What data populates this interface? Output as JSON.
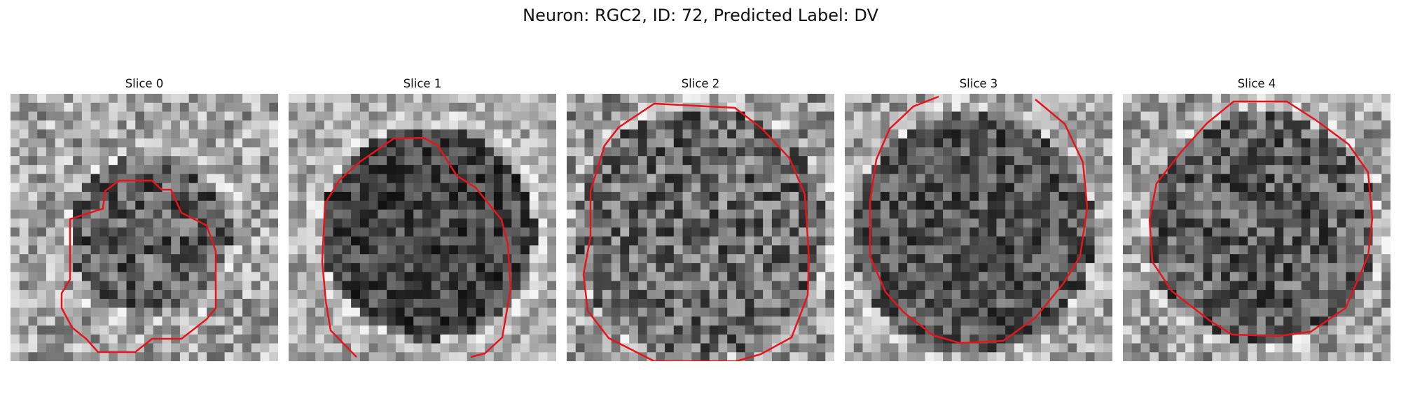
{
  "figure": {
    "title": "Neuron: RGC2, ID: 72, Predicted Label: DV"
  },
  "panels": [
    {
      "title": "Slice 0"
    },
    {
      "title": "Slice 1"
    },
    {
      "title": "Slice 2"
    },
    {
      "title": "Slice 3"
    },
    {
      "title": "Slice 4"
    }
  ],
  "colors": {
    "contour": "#e8141c"
  }
}
